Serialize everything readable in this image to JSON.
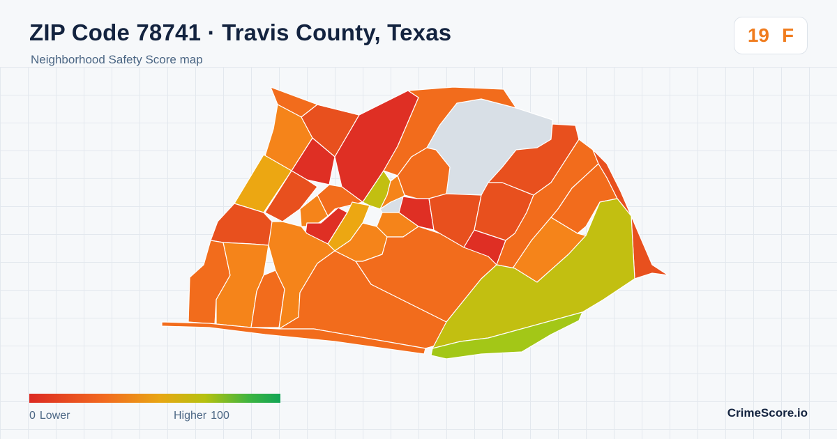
{
  "header": {
    "title": "ZIP Code 78741 · Travis County, Texas",
    "subtitle": "Neighborhood Safety Score map"
  },
  "score": {
    "value": "19",
    "grade": "F",
    "color": "#f07c1e"
  },
  "legend": {
    "min_value": "0",
    "min_label": "Lower",
    "max_label": "Higher",
    "max_value": "100",
    "gradient_colors": [
      "#dc2a22",
      "#f26a1f",
      "#e8a613",
      "#b5c10f",
      "#3bb441",
      "#12a455"
    ]
  },
  "brand": "CrimeScore.io",
  "map": {
    "colors": {
      "no_data": "#d8dfe6",
      "red": "#df2f24",
      "red_orange": "#e8501e",
      "orange": "#f26c1c",
      "orange_light": "#f5841a",
      "amber": "#eca712",
      "yellow_green": "#c2bf11",
      "green": "#a3c717"
    }
  }
}
